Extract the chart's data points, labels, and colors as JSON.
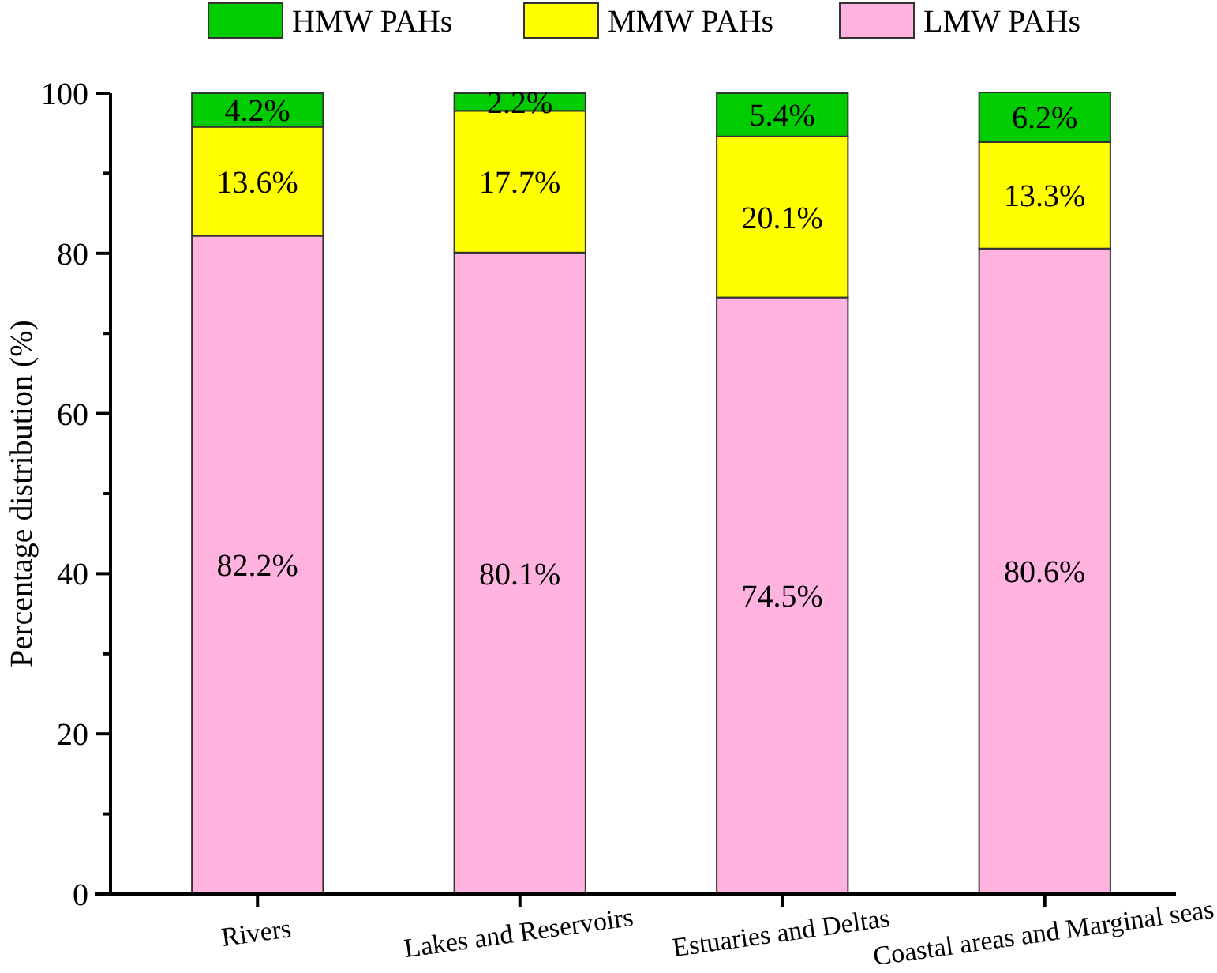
{
  "chart_data": {
    "type": "bar",
    "stacked": true,
    "ylabel": "Percentage distribution (%)",
    "categories": [
      "Rivers",
      "Lakes and Reservoirs",
      "Estuaries and Deltas",
      "Coastal areas and Marginal seas"
    ],
    "series": [
      {
        "name": "LMW PAHs",
        "color": "#ffb3de",
        "values": [
          82.2,
          80.1,
          74.5,
          80.6
        ],
        "value_labels": [
          "82.2%",
          "80.1%",
          "74.5%",
          "80.6%"
        ]
      },
      {
        "name": "MMW PAHs",
        "color": "#ffff00",
        "values": [
          13.6,
          17.7,
          20.1,
          13.3
        ],
        "value_labels": [
          "13.6%",
          "17.7%",
          "20.1%",
          "13.3%"
        ]
      },
      {
        "name": "HMW PAHs",
        "color": "#00cc00",
        "values": [
          4.2,
          2.2,
          5.4,
          6.2
        ],
        "value_labels": [
          "4.2%",
          "2.2%",
          "5.4%",
          "6.2%"
        ]
      }
    ],
    "ylim": [
      0,
      100
    ],
    "yticks": [
      0,
      {
        "value": 10,
        "label": null
      },
      20,
      {
        "value": 30,
        "label": null
      },
      40,
      {
        "value": 50,
        "label": null
      },
      60,
      {
        "value": 70,
        "label": null
      },
      80,
      {
        "value": 90,
        "label": null
      },
      100
    ],
    "grid": false,
    "legend": "top"
  }
}
